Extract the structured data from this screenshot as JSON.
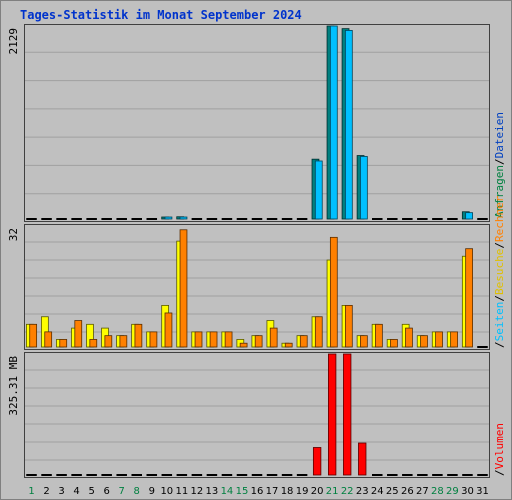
{
  "chart_data": {
    "type": "bar",
    "title": "Tages-Statistik im Monat September 2024",
    "categories": [
      "1",
      "2",
      "3",
      "4",
      "5",
      "6",
      "7",
      "8",
      "9",
      "10",
      "11",
      "12",
      "13",
      "14",
      "15",
      "16",
      "17",
      "18",
      "19",
      "20",
      "21",
      "22",
      "23",
      "24",
      "25",
      "26",
      "27",
      "28",
      "29",
      "30",
      "31"
    ],
    "weekend_days": [
      "1",
      "7",
      "8",
      "14",
      "15",
      "21",
      "22",
      "28",
      "29"
    ],
    "right_legend": {
      "top": [
        {
          "text": "Anfragen",
          "color": "#008040"
        },
        {
          "text": "/",
          "color": "#000000"
        },
        {
          "text": "Dateien",
          "color": "#0040c0"
        }
      ],
      "middle": [
        {
          "text": "/",
          "color": "#000000"
        },
        {
          "text": "Seiten",
          "color": "#00c0ff"
        },
        {
          "text": "/",
          "color": "#000000"
        },
        {
          "text": "Besuche",
          "color": "#e0c000"
        },
        {
          "text": "/",
          "color": "#000000"
        },
        {
          "text": "Rechner",
          "color": "#ff8000"
        }
      ],
      "bottom": [
        {
          "text": "/",
          "color": "#000000"
        },
        {
          "text": "Volumen",
          "color": "#ff0000"
        }
      ]
    },
    "panels": [
      {
        "id": "requests",
        "ylabel": "2129",
        "ylim": [
          0,
          2129
        ],
        "series": [
          {
            "name": "Anfragen",
            "color": "#008080",
            "values": [
              0,
              0,
              0,
              0,
              0,
              0,
              0,
              0,
              0,
              15,
              25,
              0,
              0,
              0,
              0,
              0,
              0,
              0,
              0,
              660,
              2129,
              2100,
              700,
              0,
              0,
              0,
              0,
              0,
              0,
              80,
              0
            ]
          },
          {
            "name": "Dateien",
            "color": "#00c0ff",
            "values": [
              0,
              0,
              0,
              0,
              0,
              0,
              0,
              0,
              0,
              12,
              22,
              0,
              0,
              0,
              0,
              0,
              0,
              0,
              0,
              640,
              2129,
              2080,
              690,
              0,
              0,
              0,
              0,
              0,
              0,
              70,
              0
            ]
          }
        ]
      },
      {
        "id": "visits",
        "ylabel": "32",
        "ylim": [
          0,
          32
        ],
        "series": [
          {
            "name": "Besuche",
            "color": "#ffff00",
            "values": [
              6,
              8,
              2,
              5,
              6,
              5,
              3,
              6,
              4,
              11,
              28,
              4,
              4,
              4,
              2,
              3,
              7,
              1,
              3,
              8,
              23,
              11,
              3,
              6,
              2,
              6,
              3,
              4,
              4,
              24,
              0
            ]
          },
          {
            "name": "Rechner",
            "color": "#ff8000",
            "values": [
              6,
              4,
              2,
              7,
              2,
              3,
              3,
              6,
              4,
              9,
              31,
              4,
              4,
              4,
              1,
              3,
              5,
              1,
              3,
              8,
              29,
              11,
              3,
              6,
              2,
              5,
              3,
              4,
              4,
              26,
              0
            ]
          }
        ]
      },
      {
        "id": "volume",
        "ylabel": "325.31 MB",
        "ylim": [
          0,
          325.31
        ],
        "series": [
          {
            "name": "Volumen",
            "color": "#ff0000",
            "values": [
              0,
              0,
              0,
              0,
              0,
              0,
              0,
              0,
              0,
              0,
              0,
              0,
              0,
              0,
              0,
              0,
              0,
              0,
              0,
              74,
              325.31,
              325.31,
              86,
              0,
              0,
              0,
              0,
              0,
              0,
              0,
              0
            ]
          }
        ]
      }
    ]
  }
}
